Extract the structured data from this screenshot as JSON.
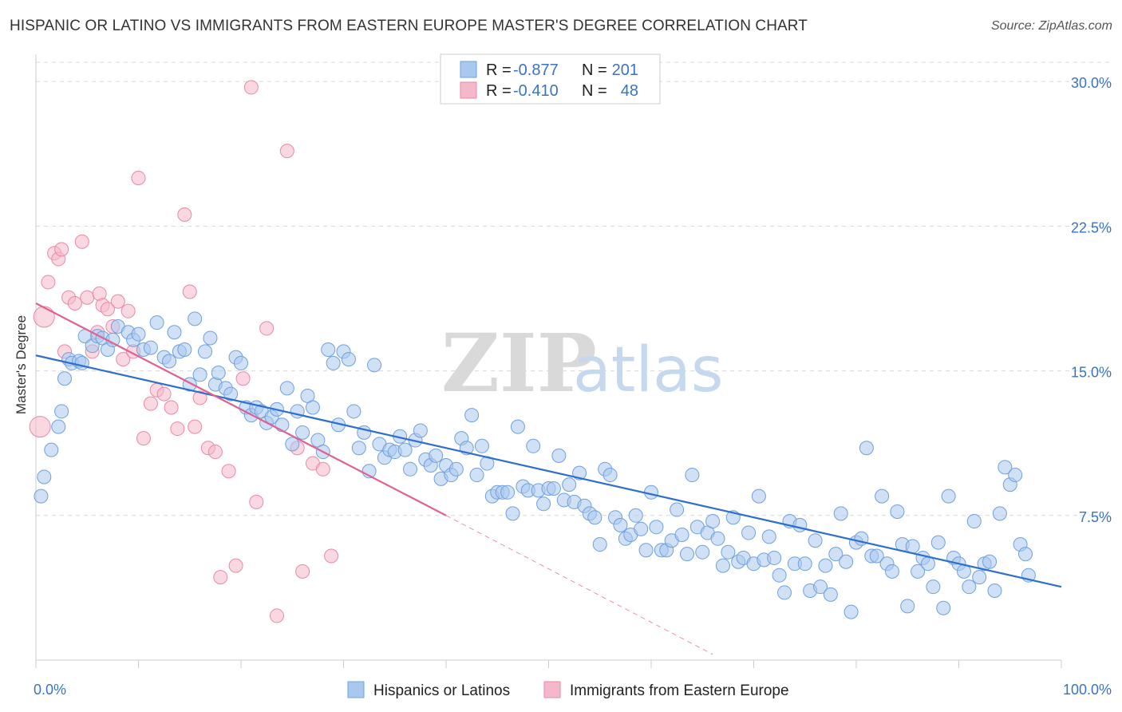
{
  "title": "HISPANIC OR LATINO VS IMMIGRANTS FROM EASTERN EUROPE MASTER'S DEGREE CORRELATION CHART",
  "source": "Source: ZipAtlas.com",
  "watermark": {
    "zip": "ZIP",
    "atlas": "atlas"
  },
  "legend": {
    "rows": [
      {
        "r_label": "R =",
        "r_value": "-0.877",
        "n_label": "N =",
        "n_value": "201",
        "color": "#a9c8ef"
      },
      {
        "r_label": "R =",
        "r_value": "-0.410",
        "n_label": "N =",
        "n_value": "48",
        "color": "#f5b8cb"
      }
    ]
  },
  "colors": {
    "blue_fill": "#a9c8ef",
    "blue_stroke": "#6fa0de",
    "blue_line": "#2e6fcd",
    "pink_fill": "#f5b8cb",
    "pink_stroke": "#e889a6",
    "pink_line": "#e06090",
    "grid": "#d8d8d8",
    "tick_label": "#3a73c4"
  },
  "chart_data": {
    "type": "scatter",
    "xlabel": "",
    "ylabel": "Master's Degree",
    "xlim": [
      0,
      100
    ],
    "ylim": [
      0,
      31
    ],
    "x_tick_labels": [
      "0.0%",
      "100.0%"
    ],
    "y_ticks": [
      7.5,
      15.0,
      22.5,
      30.0
    ],
    "y_tick_labels": [
      "7.5%",
      "15.0%",
      "22.5%",
      "30.0%"
    ],
    "grid": "horizontal dashed",
    "legend_position": "top-center and bottom",
    "series": [
      {
        "name": "Hispanics or Latinos",
        "trend": {
          "x": [
            0,
            100
          ],
          "y": [
            15.8,
            3.8
          ]
        },
        "points": [
          [
            0.5,
            8.5
          ],
          [
            0.8,
            9.5
          ],
          [
            1.5,
            10.9
          ],
          [
            2.2,
            12.1
          ],
          [
            2.5,
            12.9
          ],
          [
            2.8,
            14.6
          ],
          [
            3.2,
            15.6
          ],
          [
            3.5,
            15.4
          ],
          [
            4.2,
            15.5
          ],
          [
            4.5,
            15.4
          ],
          [
            4.8,
            16.8
          ],
          [
            5.5,
            16.3
          ],
          [
            6.0,
            16.8
          ],
          [
            6.5,
            16.7
          ],
          [
            7.0,
            16.1
          ],
          [
            7.5,
            16.6
          ],
          [
            8.0,
            17.3
          ],
          [
            9.0,
            17.0
          ],
          [
            9.5,
            16.6
          ],
          [
            10.0,
            16.9
          ],
          [
            10.5,
            16.1
          ],
          [
            11.2,
            16.2
          ],
          [
            11.8,
            17.5
          ],
          [
            12.5,
            15.7
          ],
          [
            13.0,
            15.5
          ],
          [
            13.5,
            17.0
          ],
          [
            14.0,
            16.0
          ],
          [
            14.5,
            16.1
          ],
          [
            15.0,
            14.3
          ],
          [
            15.5,
            17.7
          ],
          [
            16.0,
            14.8
          ],
          [
            16.5,
            16.0
          ],
          [
            17.0,
            16.7
          ],
          [
            17.5,
            14.3
          ],
          [
            17.8,
            14.9
          ],
          [
            18.5,
            14.1
          ],
          [
            19.0,
            13.8
          ],
          [
            19.5,
            15.7
          ],
          [
            20.0,
            15.4
          ],
          [
            20.5,
            13.1
          ],
          [
            21.0,
            12.7
          ],
          [
            21.5,
            13.1
          ],
          [
            22.0,
            12.9
          ],
          [
            22.5,
            12.3
          ],
          [
            23.0,
            12.6
          ],
          [
            23.5,
            13.0
          ],
          [
            24.0,
            12.2
          ],
          [
            24.5,
            14.1
          ],
          [
            25.0,
            11.2
          ],
          [
            25.5,
            12.9
          ],
          [
            26.0,
            11.8
          ],
          [
            26.5,
            13.7
          ],
          [
            27.0,
            13.1
          ],
          [
            27.5,
            11.4
          ],
          [
            28.0,
            10.8
          ],
          [
            28.5,
            16.1
          ],
          [
            29.0,
            15.4
          ],
          [
            29.5,
            12.2
          ],
          [
            30.0,
            16.0
          ],
          [
            30.5,
            15.6
          ],
          [
            31.0,
            12.9
          ],
          [
            31.5,
            11.0
          ],
          [
            32.0,
            11.8
          ],
          [
            32.5,
            9.8
          ],
          [
            33.0,
            15.3
          ],
          [
            33.5,
            11.2
          ],
          [
            34.0,
            10.5
          ],
          [
            34.5,
            10.9
          ],
          [
            35.0,
            10.8
          ],
          [
            35.5,
            11.6
          ],
          [
            36.0,
            10.9
          ],
          [
            36.5,
            9.9
          ],
          [
            37.0,
            11.4
          ],
          [
            37.5,
            11.9
          ],
          [
            38.0,
            10.4
          ],
          [
            38.5,
            10.1
          ],
          [
            39.0,
            10.6
          ],
          [
            39.5,
            9.4
          ],
          [
            40.0,
            10.1
          ],
          [
            40.5,
            9.6
          ],
          [
            41.0,
            9.9
          ],
          [
            41.5,
            11.5
          ],
          [
            42.0,
            11.0
          ],
          [
            42.5,
            12.7
          ],
          [
            43.0,
            9.6
          ],
          [
            43.5,
            11.1
          ],
          [
            44.0,
            10.2
          ],
          [
            44.5,
            8.5
          ],
          [
            45.0,
            8.7
          ],
          [
            45.5,
            8.7
          ],
          [
            46.0,
            8.7
          ],
          [
            46.5,
            7.6
          ],
          [
            47.0,
            12.1
          ],
          [
            47.5,
            9.0
          ],
          [
            48.0,
            8.8
          ],
          [
            48.5,
            11.1
          ],
          [
            49.0,
            8.8
          ],
          [
            49.5,
            8.1
          ],
          [
            50.0,
            8.9
          ],
          [
            50.5,
            8.9
          ],
          [
            51.0,
            10.6
          ],
          [
            51.5,
            8.3
          ],
          [
            52.0,
            9.1
          ],
          [
            52.5,
            8.2
          ],
          [
            53.0,
            9.7
          ],
          [
            53.5,
            8.0
          ],
          [
            54.0,
            7.6
          ],
          [
            54.5,
            7.4
          ],
          [
            55.0,
            6.0
          ],
          [
            55.5,
            9.9
          ],
          [
            56.0,
            9.6
          ],
          [
            56.5,
            7.4
          ],
          [
            57.0,
            7.0
          ],
          [
            57.5,
            6.3
          ],
          [
            58.0,
            6.5
          ],
          [
            58.5,
            7.5
          ],
          [
            59.0,
            6.8
          ],
          [
            59.5,
            5.7
          ],
          [
            60.0,
            8.7
          ],
          [
            60.5,
            6.9
          ],
          [
            61.0,
            5.7
          ],
          [
            61.5,
            5.7
          ],
          [
            62.0,
            6.2
          ],
          [
            62.5,
            7.8
          ],
          [
            63.0,
            6.5
          ],
          [
            63.5,
            5.5
          ],
          [
            64.0,
            9.6
          ],
          [
            64.5,
            6.9
          ],
          [
            65.0,
            5.6
          ],
          [
            65.5,
            6.6
          ],
          [
            66.0,
            7.2
          ],
          [
            66.5,
            6.3
          ],
          [
            67.0,
            4.9
          ],
          [
            67.5,
            5.6
          ],
          [
            68.0,
            7.4
          ],
          [
            68.5,
            5.1
          ],
          [
            69.0,
            5.3
          ],
          [
            69.5,
            6.6
          ],
          [
            70.0,
            5.0
          ],
          [
            70.5,
            8.5
          ],
          [
            71.0,
            5.2
          ],
          [
            71.5,
            6.4
          ],
          [
            72.0,
            5.3
          ],
          [
            72.5,
            4.4
          ],
          [
            73.0,
            3.5
          ],
          [
            73.5,
            7.2
          ],
          [
            74.0,
            5.0
          ],
          [
            74.5,
            7.0
          ],
          [
            75.0,
            5.0
          ],
          [
            75.5,
            3.6
          ],
          [
            76.0,
            6.2
          ],
          [
            76.5,
            3.8
          ],
          [
            77.0,
            4.9
          ],
          [
            77.5,
            3.4
          ],
          [
            78.0,
            5.5
          ],
          [
            78.5,
            7.6
          ],
          [
            79.0,
            5.1
          ],
          [
            79.5,
            2.5
          ],
          [
            80.0,
            6.1
          ],
          [
            80.5,
            6.3
          ],
          [
            81.0,
            11.0
          ],
          [
            81.5,
            5.4
          ],
          [
            82.0,
            5.4
          ],
          [
            82.5,
            8.5
          ],
          [
            83.0,
            5.0
          ],
          [
            83.5,
            4.6
          ],
          [
            84.0,
            7.7
          ],
          [
            84.5,
            6.0
          ],
          [
            85.0,
            2.8
          ],
          [
            85.5,
            5.9
          ],
          [
            86.0,
            4.6
          ],
          [
            86.5,
            5.3
          ],
          [
            87.0,
            5.0
          ],
          [
            87.5,
            3.8
          ],
          [
            88.0,
            6.1
          ],
          [
            88.5,
            2.7
          ],
          [
            89.0,
            8.5
          ],
          [
            89.5,
            5.3
          ],
          [
            90.0,
            5.0
          ],
          [
            90.5,
            4.6
          ],
          [
            91.0,
            3.8
          ],
          [
            91.5,
            7.2
          ],
          [
            92.0,
            4.3
          ],
          [
            92.5,
            5.0
          ],
          [
            93.0,
            5.1
          ],
          [
            93.5,
            3.6
          ],
          [
            94.0,
            7.6
          ],
          [
            94.5,
            10.0
          ],
          [
            95.0,
            9.1
          ],
          [
            95.5,
            9.6
          ],
          [
            96.0,
            6.0
          ],
          [
            96.5,
            5.5
          ],
          [
            96.8,
            4.4
          ]
        ]
      },
      {
        "name": "Immigrants from Eastern Europe",
        "trend": {
          "x": [
            0,
            40
          ],
          "y": [
            18.5,
            7.5
          ]
        },
        "trend_extension": {
          "x": [
            40,
            66
          ],
          "y": [
            7.5,
            0.3
          ]
        },
        "points": [
          [
            0.4,
            12.1
          ],
          [
            0.8,
            17.8
          ],
          [
            1.2,
            19.6
          ],
          [
            1.8,
            21.1
          ],
          [
            2.2,
            20.8
          ],
          [
            2.5,
            21.3
          ],
          [
            2.8,
            16.0
          ],
          [
            3.2,
            18.8
          ],
          [
            3.8,
            18.5
          ],
          [
            4.5,
            21.7
          ],
          [
            5.0,
            18.8
          ],
          [
            5.5,
            16.0
          ],
          [
            6.0,
            17.0
          ],
          [
            6.2,
            19.0
          ],
          [
            6.5,
            18.4
          ],
          [
            7.0,
            18.2
          ],
          [
            7.5,
            17.3
          ],
          [
            8.0,
            18.6
          ],
          [
            8.5,
            15.6
          ],
          [
            9.0,
            18.1
          ],
          [
            9.5,
            16.0
          ],
          [
            10.0,
            25.0
          ],
          [
            10.5,
            11.5
          ],
          [
            11.2,
            13.3
          ],
          [
            11.8,
            14.0
          ],
          [
            12.5,
            13.8
          ],
          [
            13.2,
            13.1
          ],
          [
            13.8,
            12.0
          ],
          [
            14.5,
            23.1
          ],
          [
            15.0,
            19.1
          ],
          [
            15.5,
            12.1
          ],
          [
            16.0,
            13.6
          ],
          [
            16.8,
            11.0
          ],
          [
            17.5,
            10.8
          ],
          [
            18.0,
            4.3
          ],
          [
            18.8,
            9.8
          ],
          [
            19.5,
            4.9
          ],
          [
            20.2,
            14.6
          ],
          [
            21.0,
            29.7
          ],
          [
            21.5,
            8.2
          ],
          [
            22.5,
            17.2
          ],
          [
            23.5,
            2.3
          ],
          [
            24.5,
            26.4
          ],
          [
            25.5,
            11.0
          ],
          [
            26.0,
            4.6
          ],
          [
            27.0,
            10.2
          ],
          [
            28.0,
            9.9
          ],
          [
            28.8,
            5.4
          ]
        ]
      }
    ]
  },
  "bottom_legend": [
    "Hispanics or Latinos",
    "Immigrants from Eastern Europe"
  ]
}
